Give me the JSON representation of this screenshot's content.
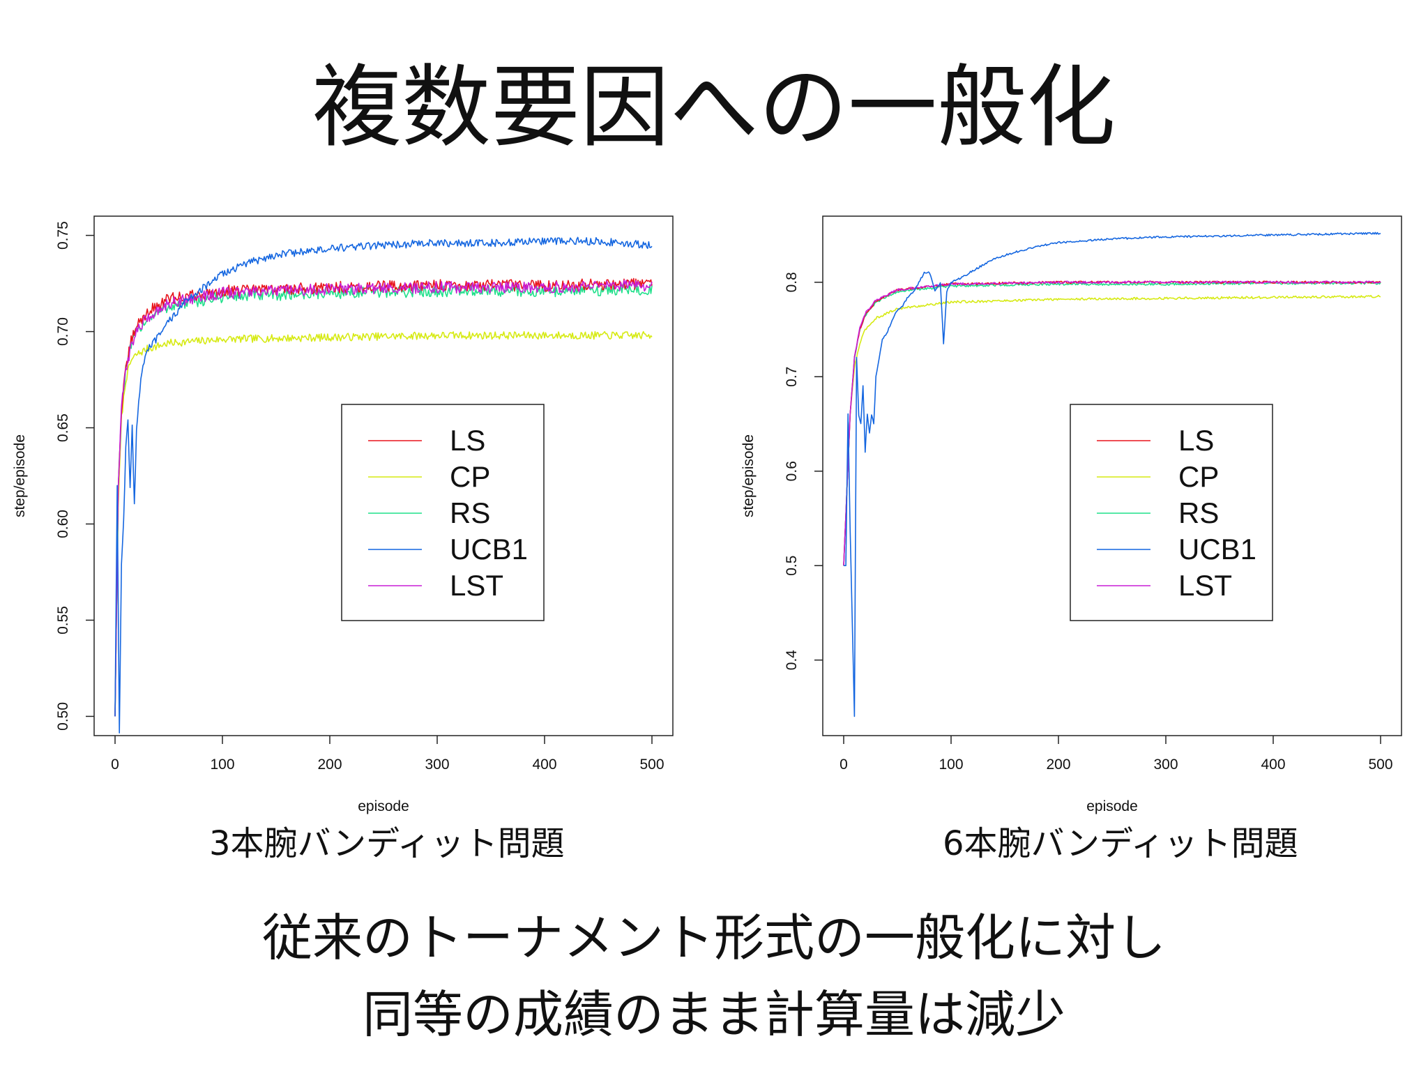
{
  "slide": {
    "title": "複数要因への一般化",
    "body_lines": [
      "従来のトーナメント形式の一般化に対し",
      "同等の成績のまま計算量は減少"
    ]
  },
  "series_colors": {
    "LS": "#e8141c",
    "CP": "#d6ea12",
    "RS": "#1fe08a",
    "UCB1": "#1466e0",
    "LST": "#c81ed6"
  },
  "chart_data": [
    {
      "type": "line",
      "caption": "3本腕バンディット問題",
      "xlabel": "episode",
      "ylabel": "step/episode",
      "xlim": [
        0,
        500
      ],
      "ylim": [
        0.49,
        0.76
      ],
      "xticks": [
        "0",
        "100",
        "200",
        "300",
        "400",
        "500"
      ],
      "yticks": [
        "0.50",
        "0.55",
        "0.60",
        "0.65",
        "0.70",
        "0.75"
      ],
      "legend_position": "right",
      "series": [
        {
          "name": "LS",
          "x": [
            0,
            3,
            6,
            10,
            15,
            20,
            30,
            50,
            100,
            200,
            300,
            400,
            500
          ],
          "y": [
            0.5,
            0.62,
            0.66,
            0.68,
            0.695,
            0.703,
            0.71,
            0.717,
            0.721,
            0.723,
            0.724,
            0.724,
            0.725
          ],
          "noise": 0.003
        },
        {
          "name": "CP",
          "x": [
            0,
            3,
            6,
            10,
            15,
            20,
            30,
            50,
            100,
            200,
            300,
            400,
            500
          ],
          "y": [
            0.5,
            0.61,
            0.655,
            0.675,
            0.685,
            0.688,
            0.691,
            0.694,
            0.696,
            0.697,
            0.698,
            0.698,
            0.698
          ],
          "noise": 0.002
        },
        {
          "name": "RS",
          "x": [
            0,
            3,
            6,
            10,
            15,
            20,
            30,
            50,
            100,
            200,
            300,
            400,
            500
          ],
          "y": [
            0.5,
            0.62,
            0.66,
            0.68,
            0.693,
            0.7,
            0.707,
            0.713,
            0.718,
            0.72,
            0.721,
            0.721,
            0.722
          ],
          "noise": 0.003
        },
        {
          "name": "UCB1",
          "x": [
            0,
            2,
            4,
            6,
            8,
            10,
            12,
            14,
            16,
            18,
            20,
            25,
            30,
            40,
            50,
            60,
            70,
            80,
            90,
            95,
            100,
            120,
            150,
            200,
            250,
            300,
            350,
            400,
            450,
            500
          ],
          "y": [
            0.5,
            0.62,
            0.493,
            0.58,
            0.6,
            0.64,
            0.655,
            0.62,
            0.65,
            0.61,
            0.65,
            0.68,
            0.69,
            0.697,
            0.705,
            0.712,
            0.718,
            0.722,
            0.725,
            0.728,
            0.73,
            0.735,
            0.74,
            0.743,
            0.745,
            0.746,
            0.746,
            0.747,
            0.747,
            0.745
          ],
          "noise": 0.002
        },
        {
          "name": "LST",
          "x": [
            0,
            3,
            6,
            10,
            15,
            20,
            30,
            50,
            100,
            200,
            300,
            400,
            500
          ],
          "y": [
            0.5,
            0.62,
            0.66,
            0.68,
            0.693,
            0.7,
            0.707,
            0.715,
            0.72,
            0.722,
            0.723,
            0.723,
            0.724
          ],
          "noise": 0.003
        }
      ]
    },
    {
      "type": "line",
      "caption": "6本腕バンディット問題",
      "xlabel": "episode",
      "ylabel": "step/episode",
      "xlim": [
        0,
        500
      ],
      "ylim": [
        0.32,
        0.87
      ],
      "xticks": [
        "0",
        "100",
        "200",
        "300",
        "400",
        "500"
      ],
      "yticks": [
        "0.4",
        "0.5",
        "0.6",
        "0.7",
        "0.8"
      ],
      "legend_position": "right",
      "series": [
        {
          "name": "LS",
          "x": [
            0,
            3,
            6,
            10,
            15,
            20,
            30,
            50,
            100,
            200,
            300,
            400,
            500
          ],
          "y": [
            0.5,
            0.58,
            0.66,
            0.72,
            0.75,
            0.765,
            0.78,
            0.792,
            0.798,
            0.8,
            0.8,
            0.8,
            0.8
          ],
          "noise": 0.0012
        },
        {
          "name": "CP",
          "x": [
            0,
            3,
            6,
            10,
            15,
            20,
            30,
            50,
            100,
            200,
            300,
            400,
            500
          ],
          "y": [
            0.5,
            0.58,
            0.66,
            0.71,
            0.735,
            0.75,
            0.762,
            0.772,
            0.779,
            0.782,
            0.783,
            0.784,
            0.785
          ],
          "noise": 0.0012
        },
        {
          "name": "RS",
          "x": [
            0,
            3,
            6,
            10,
            15,
            20,
            30,
            50,
            100,
            200,
            300,
            400,
            500
          ],
          "y": [
            0.5,
            0.58,
            0.66,
            0.72,
            0.75,
            0.765,
            0.779,
            0.79,
            0.796,
            0.798,
            0.798,
            0.799,
            0.799
          ],
          "noise": 0.0012
        },
        {
          "name": "UCB1",
          "x": [
            0,
            2,
            4,
            6,
            8,
            10,
            12,
            14,
            16,
            18,
            20,
            22,
            24,
            26,
            28,
            30,
            33,
            36,
            40,
            45,
            50,
            55,
            60,
            65,
            70,
            75,
            80,
            85,
            90,
            93,
            96,
            100,
            110,
            120,
            140,
            160,
            180,
            200,
            250,
            300,
            350,
            400,
            450,
            500
          ],
          "y": [
            0.5,
            0.5,
            0.66,
            0.54,
            0.44,
            0.34,
            0.72,
            0.66,
            0.65,
            0.69,
            0.62,
            0.66,
            0.64,
            0.66,
            0.65,
            0.7,
            0.72,
            0.74,
            0.745,
            0.76,
            0.77,
            0.775,
            0.785,
            0.79,
            0.8,
            0.81,
            0.81,
            0.79,
            0.8,
            0.735,
            0.79,
            0.8,
            0.805,
            0.812,
            0.825,
            0.832,
            0.838,
            0.842,
            0.846,
            0.848,
            0.849,
            0.85,
            0.851,
            0.852
          ],
          "noise": 0.001
        },
        {
          "name": "LST",
          "x": [
            0,
            3,
            6,
            10,
            15,
            20,
            30,
            50,
            100,
            200,
            300,
            400,
            500
          ],
          "y": [
            0.5,
            0.58,
            0.66,
            0.72,
            0.752,
            0.767,
            0.781,
            0.792,
            0.798,
            0.8,
            0.8,
            0.8,
            0.8
          ],
          "noise": 0.0012
        }
      ]
    }
  ]
}
